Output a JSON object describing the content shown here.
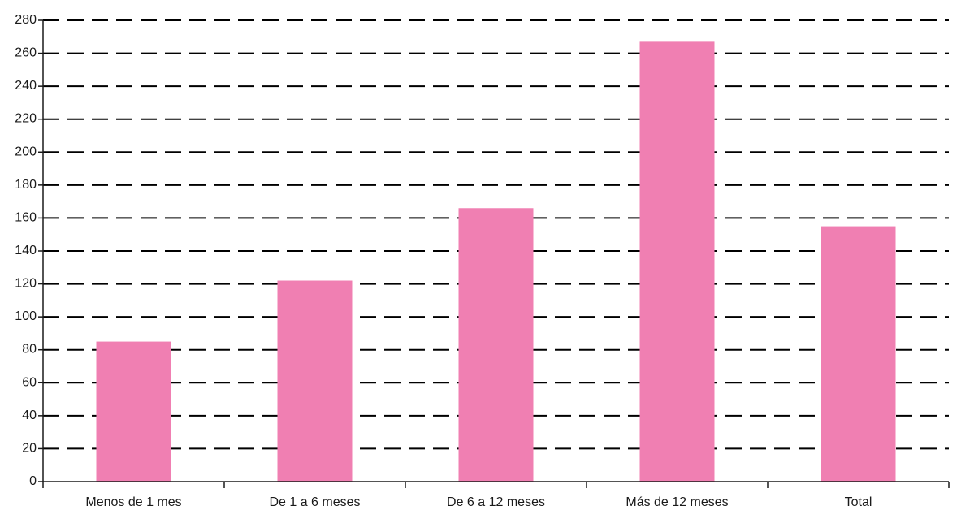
{
  "chart_data": {
    "type": "bar",
    "categories": [
      "Menos de 1 mes",
      "De 1 a 6 meses",
      "De 6 a 12 meses",
      "Más de 12 meses",
      "Total"
    ],
    "values": [
      85,
      122,
      166,
      267,
      155
    ],
    "title": "",
    "xlabel": "",
    "ylabel": "",
    "ylim": [
      0,
      280
    ],
    "yticks": [
      0,
      20,
      40,
      60,
      80,
      100,
      120,
      140,
      160,
      180,
      200,
      220,
      240,
      260,
      280
    ],
    "grid": true,
    "grid_style": "dashed",
    "legend": "none",
    "colors": {
      "bar": "#f07fb2",
      "axis": "#1a1a1a",
      "grid": "#000000"
    }
  }
}
